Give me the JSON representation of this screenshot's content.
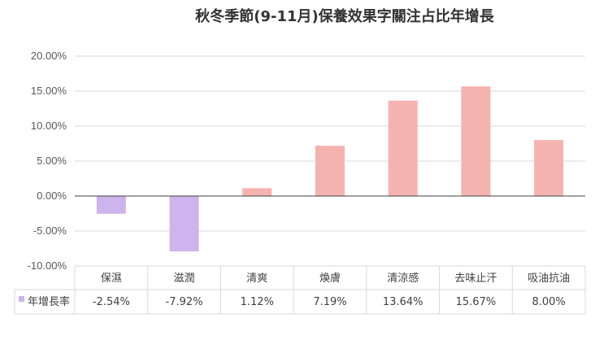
{
  "chart_data": {
    "type": "bar",
    "title": "秋冬季節(9-11月)保養效果字關注占比年增長",
    "categories": [
      "保濕",
      "滋潤",
      "清爽",
      "煥膚",
      "清涼感",
      "去味止汗",
      "吸油抗油"
    ],
    "series": [
      {
        "name": "年增長率",
        "values": [
          -2.54,
          -7.92,
          1.12,
          7.19,
          13.64,
          15.67,
          8.0
        ],
        "value_labels": [
          "-2.54%",
          "-7.92%",
          "1.12%",
          "7.19%",
          "13.64%",
          "15.67%",
          "8.00%"
        ]
      }
    ],
    "ylim": [
      -10,
      20
    ],
    "yticks": [
      20,
      15,
      10,
      5,
      0,
      -5,
      -10
    ],
    "ytick_labels": [
      "20.00%",
      "15.00%",
      "10.00%",
      "5.00%",
      "0.00%",
      "-5.00%",
      "-10.00%"
    ],
    "xlabel": "",
    "ylabel": "",
    "grid": true,
    "legend": "bottom-left (data table)",
    "colors": {
      "positive": "#F5B3AF",
      "negative": "#CDB4EC",
      "grid": "#D9D9D9",
      "axis": "#404040",
      "legend_key": "#CDB4EC"
    }
  }
}
